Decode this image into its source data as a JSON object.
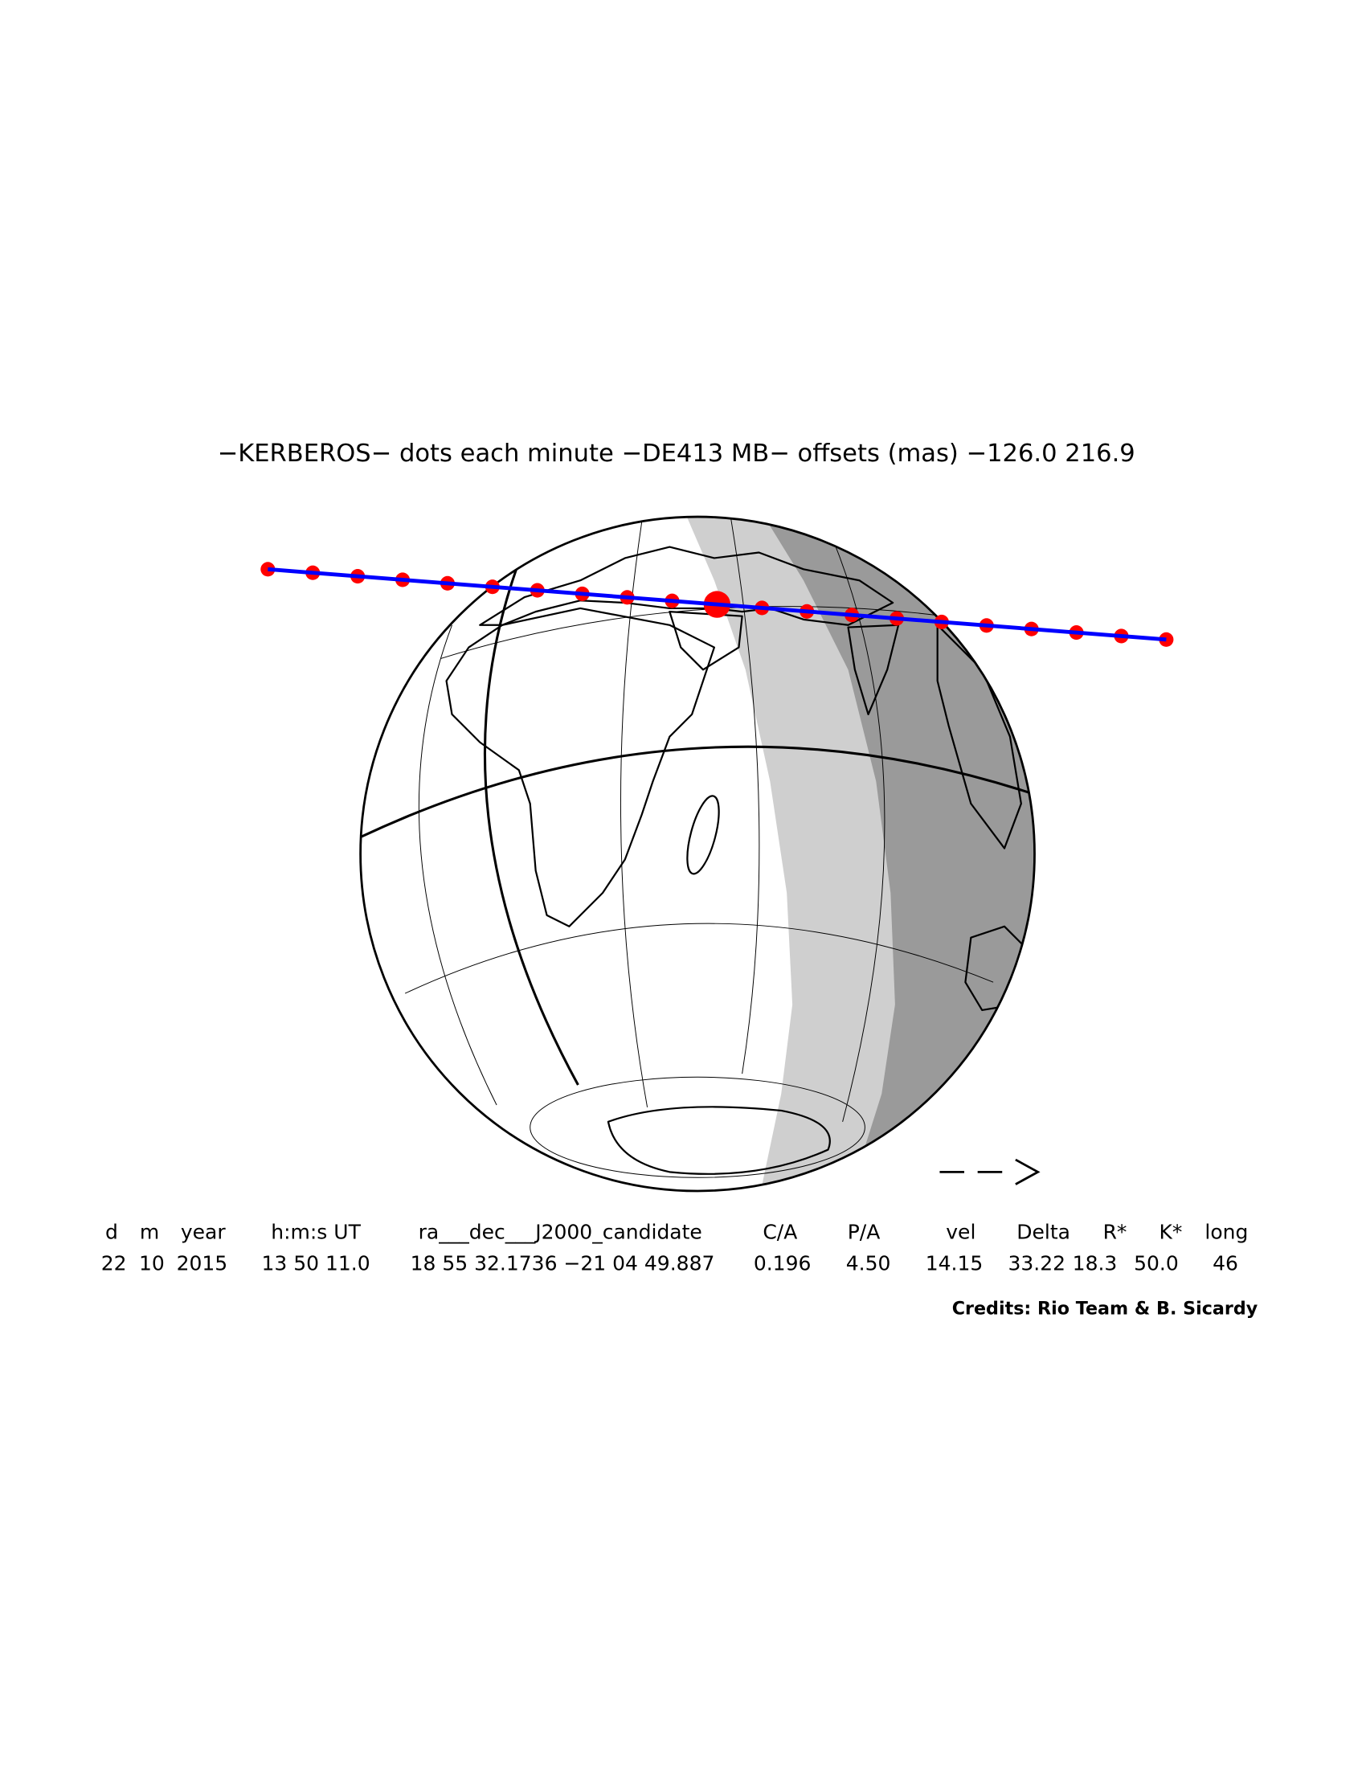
{
  "title": "−KERBEROS− dots each minute −DE413 MB− offsets (mas) −126.0   216.9",
  "table": {
    "headers": [
      "d",
      "m",
      "year",
      "h:m:s UT",
      "ra___dec___J2000_candidate",
      "C/A",
      "P/A",
      "vel",
      "Delta",
      "R*",
      "K*",
      "long"
    ],
    "values": [
      "22",
      "10",
      "2015",
      "13 50 11.0",
      "18 55 32.1736 −21 04 49.887",
      "0.196",
      "4.50",
      "14.15",
      "33.22",
      "18.3",
      "50.0",
      "46"
    ]
  },
  "credits": "Credits: Rio Team & B. Sicardy"
}
